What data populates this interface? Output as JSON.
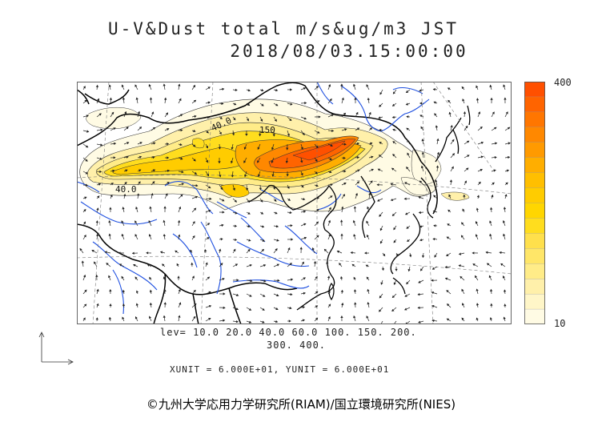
{
  "title": {
    "line1": "U-V&Dust total m/s&ug/m3 JST",
    "line2": "2018/08/03.15:00:00"
  },
  "colorbar": {
    "max_label": "400",
    "min_label": "10",
    "colors": [
      "#fffbe4",
      "#fff6c8",
      "#fff0aa",
      "#ffec88",
      "#ffe668",
      "#ffe04c",
      "#ffdd1e",
      "#ffd600",
      "#ffcc00",
      "#ffbf00",
      "#ffae00",
      "#ff9a00",
      "#ff8800",
      "#ff7600",
      "#ff6400",
      "#ff5000"
    ]
  },
  "legend": {
    "levels_line1": "lev= 10.0 20.0 40.0 60.0 100. 150. 200.",
    "levels_line2": "300. 400.",
    "units": "XUNIT = 6.000E+01, YUNIT = 6.000E+01"
  },
  "contour_labels": [
    "40.0",
    "150",
    "40.0"
  ],
  "copyright": "©九州大学応用力学研究所(RIAM)/国立環境研究所(NIES)"
}
